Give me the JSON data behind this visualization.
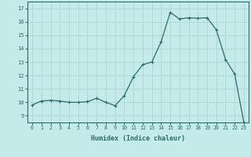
{
  "x": [
    0,
    1,
    2,
    3,
    4,
    5,
    6,
    7,
    8,
    9,
    10,
    11,
    12,
    13,
    14,
    15,
    16,
    17,
    18,
    19,
    20,
    21,
    22,
    23
  ],
  "y": [
    9.8,
    10.1,
    10.15,
    10.1,
    10.0,
    10.0,
    10.05,
    10.3,
    10.0,
    9.75,
    10.5,
    11.9,
    12.8,
    13.0,
    14.5,
    16.7,
    16.2,
    16.3,
    16.25,
    16.3,
    15.4,
    13.2,
    12.1,
    8.5
  ],
  "title": "",
  "xlabel": "Humidex (Indice chaleur)",
  "ylabel": "",
  "ylim": [
    8.5,
    17.5
  ],
  "xlim": [
    -0.5,
    23.5
  ],
  "line_color": "#2d6b6b",
  "marker": "+",
  "marker_size": 3.5,
  "bg_color": "#c5eaea",
  "grid_color": "#b0d8d8",
  "tick_color": "#2d6b6b",
  "yticks": [
    9,
    10,
    11,
    12,
    13,
    14,
    15,
    16,
    17
  ],
  "xticks": [
    0,
    1,
    2,
    3,
    4,
    5,
    6,
    7,
    8,
    9,
    10,
    11,
    12,
    13,
    14,
    15,
    16,
    17,
    18,
    19,
    20,
    21,
    22,
    23
  ]
}
